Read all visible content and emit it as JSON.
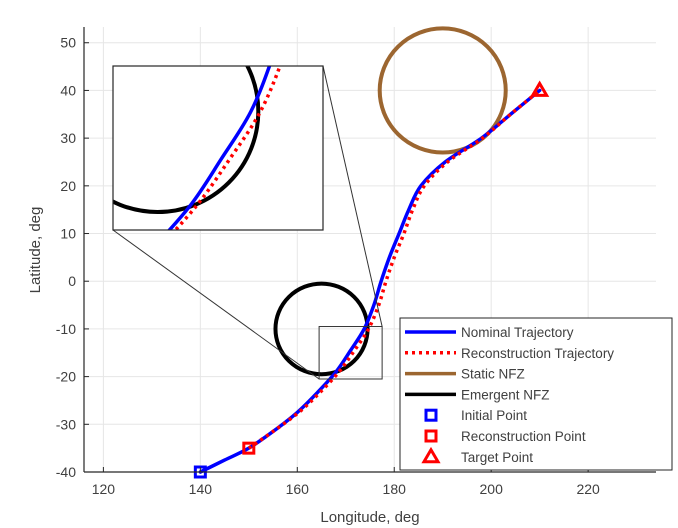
{
  "chart_data": {
    "type": "line",
    "xlabel": "Longitude, deg",
    "ylabel": "Latitude, deg",
    "xlim": [
      116,
      234
    ],
    "ylim": [
      -40,
      53.3
    ],
    "xticks": [
      120,
      140,
      160,
      180,
      200,
      220
    ],
    "yticks": [
      -40,
      -30,
      -20,
      -10,
      0,
      10,
      20,
      30,
      40,
      50
    ],
    "grid": true,
    "legend_position": "bottom-right",
    "colors": {
      "nominal": "#0000ff",
      "reconstruction": "#ff0000",
      "static_nfz": "#9c6630",
      "emergent_nfz": "#000000"
    },
    "series": [
      {
        "name": "Nominal Trajectory",
        "style": "solid",
        "x": [
          140,
          145,
          150,
          155,
          160,
          164,
          168,
          171,
          173.8,
          175.8,
          177.3,
          179,
          181,
          183,
          185.5,
          190.5,
          198,
          204,
          210
        ],
        "y": [
          -40,
          -37.5,
          -35,
          -31.5,
          -27.5,
          -23.5,
          -19,
          -14.5,
          -10,
          -5,
          0,
          5,
          10,
          15,
          20,
          25,
          30,
          35,
          40
        ]
      },
      {
        "name": "Reconstruction Trajectory",
        "style": "dotted",
        "x": [
          150,
          155,
          160.3,
          164.5,
          168.6,
          171.8,
          174.7,
          176.8,
          178.3,
          180,
          182,
          183.8,
          186.2,
          191,
          198.2,
          204,
          210
        ],
        "y": [
          -35,
          -31.5,
          -27.5,
          -23.5,
          -19,
          -14.5,
          -10,
          -5,
          0,
          5,
          10,
          15,
          20,
          25,
          30,
          35,
          40
        ]
      }
    ],
    "circles": [
      {
        "name": "Static NFZ",
        "center": [
          190,
          40
        ],
        "radius": 13
      },
      {
        "name": "Emergent NFZ",
        "center": [
          165,
          -10
        ],
        "radius": 9.5
      }
    ],
    "points": [
      {
        "name": "Initial Point",
        "x": 140,
        "y": -40,
        "marker": "square",
        "color": "#0000ff"
      },
      {
        "name": "Reconstruction Point",
        "x": 150,
        "y": -35,
        "marker": "square",
        "color": "#ff0000"
      },
      {
        "name": "Target Point",
        "x": 210,
        "y": 40,
        "marker": "triangle",
        "color": "#ff0000"
      }
    ],
    "zoom_box": {
      "xlim": [
        164.5,
        177.5
      ],
      "ylim": [
        -20.5,
        -9.5
      ]
    },
    "inset": {
      "xlim": [
        160.8,
        180.6
      ],
      "ylim": [
        -21.2,
        -5.7
      ]
    },
    "legend": [
      "Nominal Trajectory",
      "Reconstruction Trajectory",
      "Static NFZ",
      "Emergent NFZ",
      "Initial Point",
      "Reconstruction Point",
      "Target Point"
    ]
  }
}
